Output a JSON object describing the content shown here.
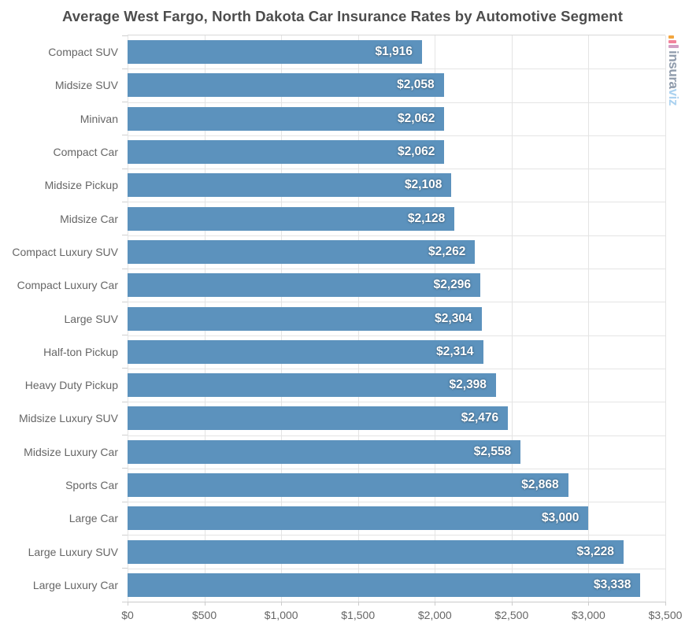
{
  "chart_data": {
    "type": "bar",
    "orientation": "horizontal",
    "title": "Average West Fargo, North Dakota Car Insurance Rates by Automotive Segment",
    "categories": [
      "Compact SUV",
      "Midsize SUV",
      "Minivan",
      "Compact Car",
      "Midsize Pickup",
      "Midsize Car",
      "Compact Luxury SUV",
      "Compact Luxury Car",
      "Large SUV",
      "Half-ton Pickup",
      "Heavy Duty Pickup",
      "Midsize Luxury SUV",
      "Midsize Luxury Car",
      "Sports Car",
      "Large Car",
      "Large Luxury SUV",
      "Large Luxury Car"
    ],
    "values": [
      1916,
      2058,
      2062,
      2062,
      2108,
      2128,
      2262,
      2296,
      2304,
      2314,
      2398,
      2476,
      2558,
      2868,
      3000,
      3228,
      3338
    ],
    "value_labels": [
      "$1,916",
      "$2,058",
      "$2,062",
      "$2,062",
      "$2,108",
      "$2,128",
      "$2,262",
      "$2,296",
      "$2,304",
      "$2,314",
      "$2,398",
      "$2,476",
      "$2,558",
      "$2,868",
      "$3,000",
      "$3,228",
      "$3,338"
    ],
    "xlabel": "",
    "ylabel": "",
    "xlim": [
      0,
      3500
    ],
    "x_tick_values": [
      0,
      500,
      1000,
      1500,
      2000,
      2500,
      3000,
      3500
    ],
    "x_tick_labels": [
      "$0",
      "$500",
      "$1,000",
      "$1,500",
      "$2,000",
      "$2,500",
      "$3,000",
      "$3,500"
    ],
    "grid": "on",
    "legend": false,
    "bar_color": "#5c92bd",
    "grid_color": "#e4e4e4",
    "label_color": "#666666",
    "title_color": "#4d4d4d",
    "value_label_color": "#ffffff"
  },
  "branding": {
    "logo_primary": "insura",
    "logo_accent": "viz",
    "logo_primary_color": "#8f9bab",
    "logo_accent_color": "#abd2f0",
    "icon": "bar-chart-icon",
    "icon_bar_colors": [
      "#f2a63f",
      "#f2839c",
      "#d39fc4"
    ]
  }
}
